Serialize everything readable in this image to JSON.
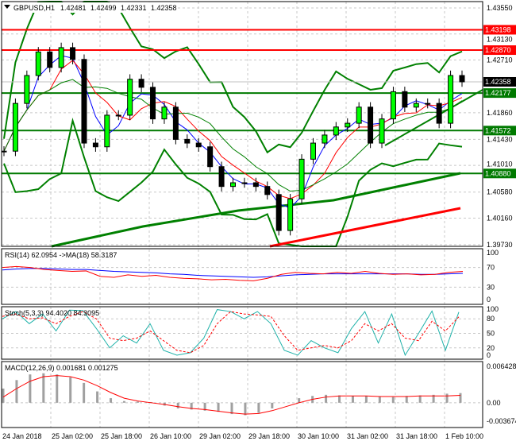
{
  "header": {
    "symbol": "GBPUSD,H1",
    "open": "1.42481",
    "high": "1.42499",
    "low": "1.42331",
    "close": "1.42358"
  },
  "colors": {
    "bull": "#00ff00",
    "bear": "#000000",
    "sr_green": "#007a00",
    "sr_red": "#ff0000",
    "ma_blue": "#0000ff",
    "ma_red": "#ff0000",
    "bands": "#008000",
    "stoch_main": "#20b2aa"
  },
  "chart_data": [
    {
      "type": "candlestick",
      "ylim": [
        1.3973,
        1.4355
      ],
      "yticks": [
        "1.43550",
        "1.43130",
        "1.42710",
        "1.41860",
        "1.41430",
        "1.41010",
        "1.40580",
        "1.40160",
        "1.39730"
      ],
      "xticks": [
        "24 Jan 2018",
        "25 Jan 02:00",
        "25 Jan 18:00",
        "26 Jan 10:00",
        "29 Jan 02:00",
        "29 Jan 18:00",
        "30 Jan 10:00",
        "31 Jan 02:00",
        "31 Jan 18:00",
        "1 Feb 10:00"
      ],
      "closes": [
        1.4124,
        1.4201,
        1.4246,
        1.4284,
        1.4259,
        1.4291,
        1.4272,
        1.4137,
        1.4131,
        1.4182,
        1.4182,
        1.424,
        1.4227,
        1.4176,
        1.4195,
        1.4143,
        1.4137,
        1.4131,
        1.4099,
        1.4067,
        1.4073,
        1.4073,
        1.4067,
        1.4054,
        1.3996,
        1.4047,
        1.4111,
        1.4137,
        1.415,
        1.4163,
        1.4169,
        1.4195,
        1.4137,
        1.4176,
        1.422,
        1.4195,
        1.4201,
        1.4201,
        1.4169,
        1.4246,
        1.42358
      ],
      "levels": [
        {
          "value": "1.43198",
          "color": "red"
        },
        {
          "value": "1.42870",
          "color": "red"
        },
        {
          "value": "1.42177",
          "color": "green"
        },
        {
          "value": "1.41572",
          "color": "green"
        },
        {
          "value": "1.40880",
          "color": "green"
        }
      ],
      "current_price": "1.42358"
    },
    {
      "type": "line",
      "title": "RSI(14) 62.0954  ->MA(18) 58.3187",
      "ylim": [
        0,
        100
      ],
      "yticks": [
        "100",
        "70",
        "30",
        "0"
      ],
      "series": [
        {
          "name": "RSI(14)",
          "values": [
            70,
            72,
            70,
            66,
            64,
            62,
            63,
            52,
            50,
            55,
            52,
            54,
            50,
            48,
            47,
            45,
            46,
            44,
            43,
            48,
            56,
            60,
            58,
            57,
            60,
            58,
            62,
            58,
            56,
            57,
            55,
            56,
            60,
            62
          ]
        },
        {
          "name": "MA(18)",
          "values": [
            65,
            67,
            68,
            68,
            67,
            66,
            66,
            64,
            62,
            61,
            60,
            59,
            57,
            56,
            54,
            53,
            52,
            51,
            50,
            51,
            53,
            55,
            56,
            57,
            57,
            57,
            57,
            57,
            57,
            57,
            56,
            56,
            57,
            58
          ]
        }
      ]
    },
    {
      "type": "line",
      "title": "Stoch(5,3,3) 94.4020 84.3095",
      "ylim": [
        0,
        100
      ],
      "yticks": [
        "100",
        "80",
        "50",
        "20",
        "0"
      ],
      "series": [
        {
          "name": "main",
          "values": [
            80,
            95,
            70,
            90,
            55,
            98,
            97,
            60,
            20,
            45,
            30,
            70,
            15,
            5,
            10,
            40,
            99,
            95,
            80,
            95,
            70,
            15,
            5,
            35,
            20,
            10,
            60,
            95,
            30,
            90,
            5,
            50,
            96,
            15,
            94
          ]
        },
        {
          "name": "signal",
          "values": [
            85,
            90,
            80,
            82,
            70,
            85,
            95,
            80,
            40,
            35,
            40,
            55,
            35,
            15,
            10,
            25,
            70,
            95,
            90,
            88,
            85,
            45,
            15,
            20,
            25,
            20,
            35,
            70,
            55,
            70,
            40,
            35,
            75,
            55,
            84
          ]
        }
      ]
    },
    {
      "type": "bar+line",
      "title": "MACD(12,26,9) 0.001681 0.001275",
      "ylim": [
        -0.003674,
        0.006428
      ],
      "yticks": [
        "0.006428",
        "0.00",
        "-0.003674"
      ],
      "histogram": [
        0.0025,
        0.004,
        0.005,
        0.0052,
        0.005,
        0.0045,
        0.0035,
        0.002,
        0.0008,
        0.0003,
        0.0002,
        0.0001,
        -0.0005,
        -0.001,
        -0.0012,
        -0.0014,
        -0.0016,
        -0.002,
        -0.0022,
        -0.0018,
        -0.001,
        0.0,
        0.0008,
        0.0012,
        0.0014,
        0.0013,
        0.0012,
        0.0012,
        0.0011,
        0.001,
        0.0012,
        0.0013,
        0.0014,
        0.0016,
        0.0017
      ],
      "signal": [
        0.001,
        0.0025,
        0.0038,
        0.0046,
        0.0048,
        0.0046,
        0.004,
        0.003,
        0.0018,
        0.0008,
        0.0003,
        0.0,
        -0.0003,
        -0.0007,
        -0.001,
        -0.0012,
        -0.0015,
        -0.0018,
        -0.002,
        -0.0019,
        -0.0014,
        -0.0007,
        0.0,
        0.0006,
        0.001,
        0.0012,
        0.0012,
        0.0012,
        0.0011,
        0.0011,
        0.0011,
        0.0012,
        0.0012,
        0.0012,
        0.0013
      ]
    }
  ]
}
